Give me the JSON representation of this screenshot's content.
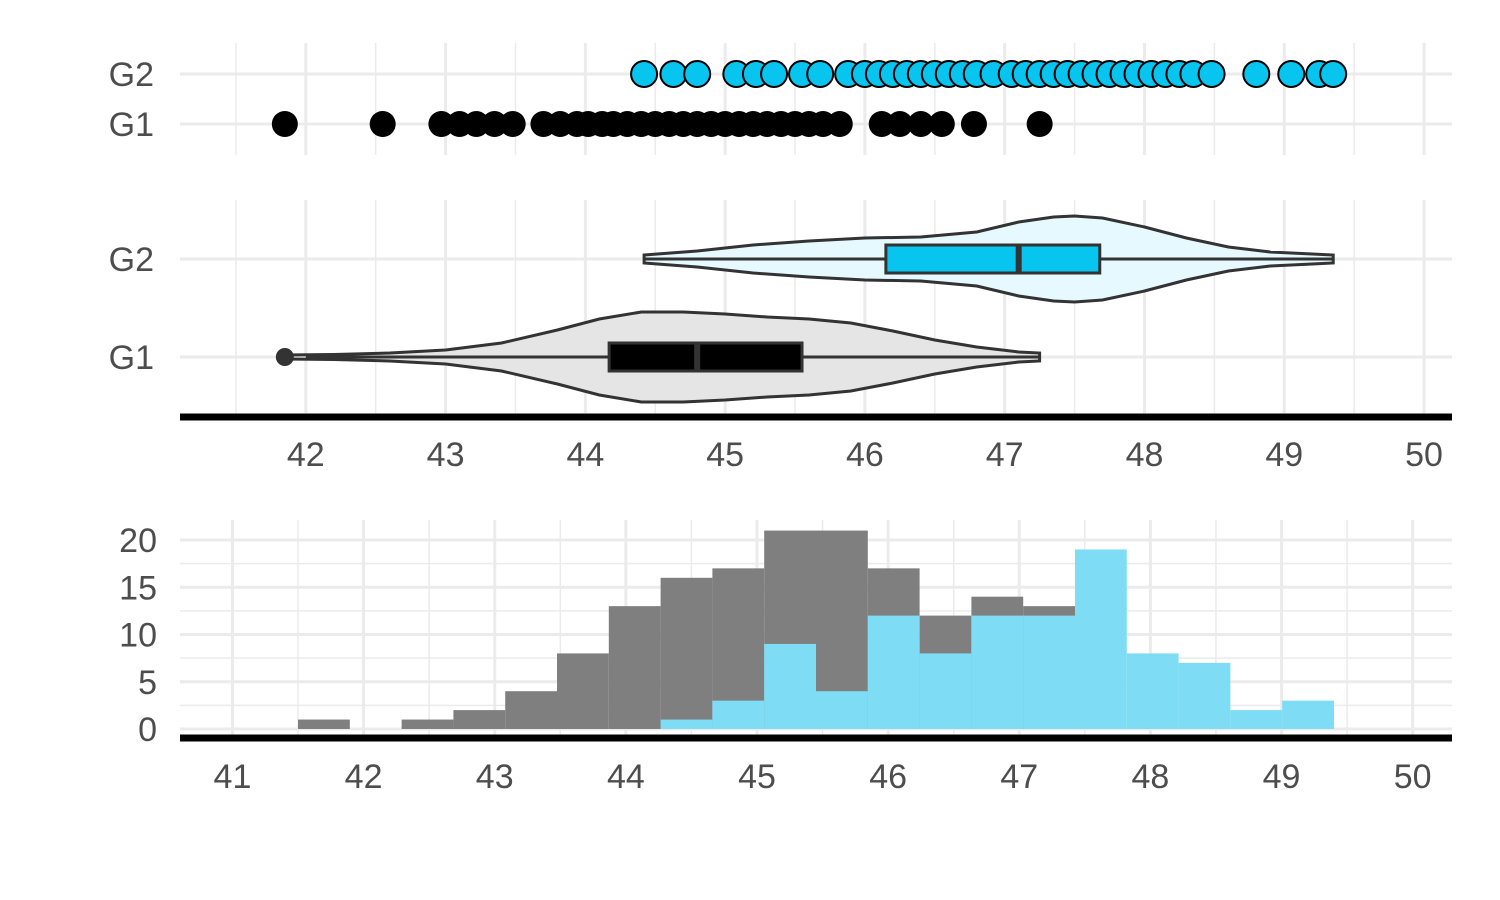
{
  "colors": {
    "g1": "#000000",
    "g2": "#08c5f0",
    "g1_violin": "#e5e5e5",
    "g2_violin": "#e6f9fe",
    "g1_box": "#000000",
    "g2_box": "#08c5f0",
    "outline": "#333333",
    "hist_g1": "#7f7f7f",
    "hist_g2": "#7fdcf5"
  },
  "chart_data": [
    {
      "type": "scatter",
      "panel": "strip",
      "groups": [
        "G1",
        "G2"
      ],
      "xlim": [
        41.1,
        50.2
      ],
      "grid": true,
      "series": [
        {
          "name": "G1",
          "values": [
            41.85,
            42.55,
            42.97,
            43.1,
            43.22,
            43.35,
            43.48,
            43.7,
            43.82,
            43.94,
            44.02,
            44.12,
            44.2,
            44.3,
            44.4,
            44.5,
            44.6,
            44.7,
            44.8,
            44.9,
            45.0,
            45.1,
            45.2,
            45.3,
            45.4,
            45.5,
            45.6,
            45.7,
            45.82,
            46.12,
            46.25,
            46.4,
            46.55,
            46.78,
            47.25
          ]
        },
        {
          "name": "G2",
          "values": [
            44.42,
            44.63,
            44.8,
            45.08,
            45.22,
            45.35,
            45.55,
            45.68,
            45.88,
            46.0,
            46.1,
            46.2,
            46.3,
            46.4,
            46.5,
            46.6,
            46.7,
            46.8,
            46.92,
            47.05,
            47.15,
            47.25,
            47.35,
            47.45,
            47.55,
            47.65,
            47.75,
            47.85,
            47.95,
            48.05,
            48.15,
            48.25,
            48.35,
            48.48,
            48.8,
            49.05,
            49.25,
            49.35
          ]
        }
      ]
    },
    {
      "type": "violin",
      "panel": "violin-box",
      "groups": [
        "G1",
        "G2"
      ],
      "xlim": [
        41.1,
        50.2
      ],
      "xticks": [
        "42",
        "43",
        "44",
        "45",
        "46",
        "47",
        "48",
        "49",
        "50"
      ],
      "grid": true,
      "series": [
        {
          "name": "G1",
          "min": 41.85,
          "q1": 44.17,
          "median": 44.8,
          "q3": 45.55,
          "max": 47.25,
          "whisker_low": 42.0,
          "whisker_high": 47.25,
          "outliers": [
            41.85
          ]
        },
        {
          "name": "G2",
          "min": 44.42,
          "q1": 46.15,
          "median": 47.1,
          "q3": 47.68,
          "max": 49.35,
          "whisker_low": 44.42,
          "whisker_high": 49.35,
          "outliers": []
        }
      ]
    },
    {
      "type": "bar",
      "panel": "histogram",
      "xlim": [
        40.6,
        50.3
      ],
      "ylim": [
        0,
        21
      ],
      "xticks": [
        "41",
        "42",
        "43",
        "44",
        "45",
        "46",
        "47",
        "48",
        "49",
        "50"
      ],
      "yticks": [
        "0",
        "5",
        "10",
        "15",
        "20"
      ],
      "grid": true,
      "bin_edges": [
        41.5,
        41.895,
        42.29,
        42.685,
        43.08,
        43.475,
        43.87,
        44.265,
        44.66,
        45.055,
        45.45,
        45.845,
        46.24,
        46.635,
        47.03,
        47.425,
        47.82,
        48.215,
        48.61,
        49.005,
        49.4
      ],
      "series": [
        {
          "name": "G1",
          "values": [
            1,
            0,
            1,
            2,
            4,
            8,
            13,
            16,
            17,
            21,
            21,
            17,
            12,
            14,
            13,
            0,
            0,
            0,
            0,
            0
          ]
        },
        {
          "name": "G2",
          "values": [
            0,
            0,
            0,
            0,
            0,
            0,
            0,
            1,
            3,
            9,
            4,
            12,
            8,
            12,
            12,
            19,
            8,
            7,
            2,
            3
          ]
        }
      ]
    }
  ]
}
